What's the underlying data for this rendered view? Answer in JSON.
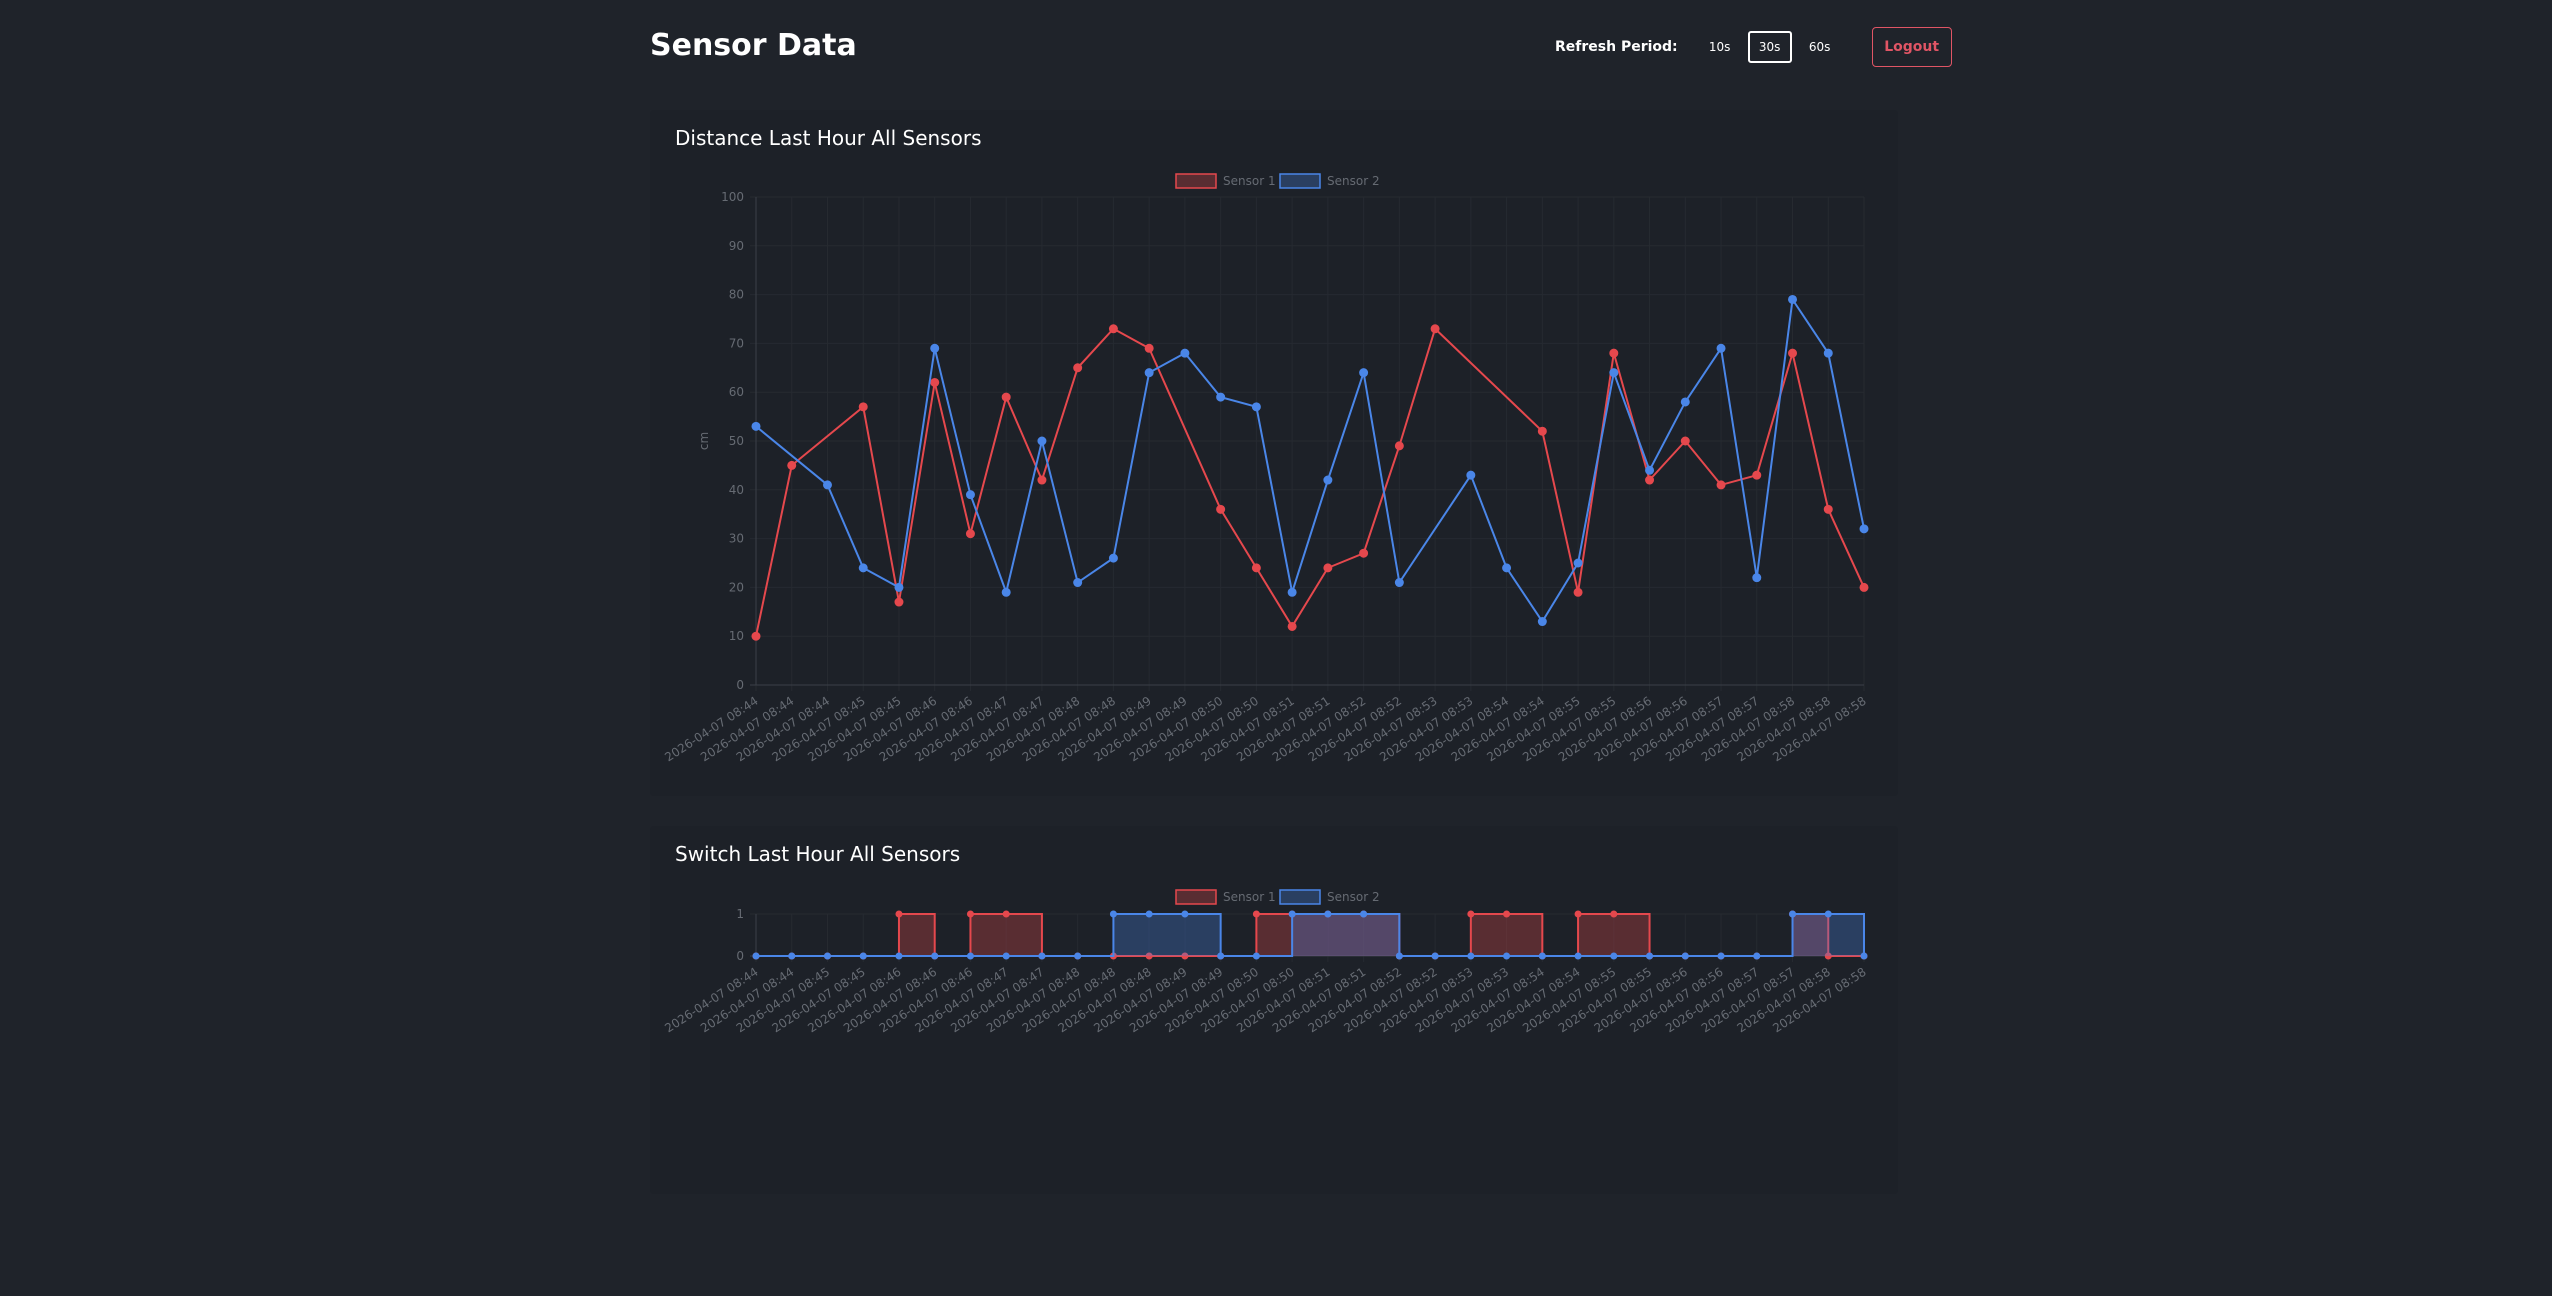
{
  "header": {
    "title": "Sensor Data",
    "refresh_label": "Refresh Period:",
    "periods": [
      "10s",
      "30s",
      "60s"
    ],
    "active_period": "30s",
    "logout_label": "Logout"
  },
  "colors": {
    "sensor1": "#e5484d",
    "sensor2": "#4a86e8",
    "logout": "#e05565",
    "background": "#1f232a"
  },
  "chart_data": [
    {
      "type": "line",
      "title": "Distance Last Hour All Sensors",
      "ylabel": "cm",
      "ylim": [
        0,
        100
      ],
      "yticks": [
        0,
        10,
        20,
        30,
        40,
        50,
        60,
        70,
        80,
        90,
        100
      ],
      "legend": "top-center",
      "grid": true,
      "x": [
        "2026-04-07 08:44",
        "2026-04-07 08:44",
        "2026-04-07 08:44",
        "2026-04-07 08:45",
        "2026-04-07 08:45",
        "2026-04-07 08:46",
        "2026-04-07 08:46",
        "2026-04-07 08:47",
        "2026-04-07 08:47",
        "2026-04-07 08:48",
        "2026-04-07 08:48",
        "2026-04-07 08:49",
        "2026-04-07 08:49",
        "2026-04-07 08:50",
        "2026-04-07 08:50",
        "2026-04-07 08:51",
        "2026-04-07 08:51",
        "2026-04-07 08:52",
        "2026-04-07 08:52",
        "2026-04-07 08:53",
        "2026-04-07 08:53",
        "2026-04-07 08:54",
        "2026-04-07 08:54",
        "2026-04-07 08:55",
        "2026-04-07 08:55",
        "2026-04-07 08:56",
        "2026-04-07 08:56",
        "2026-04-07 08:57",
        "2026-04-07 08:57",
        "2026-04-07 08:58",
        "2026-04-07 08:58",
        "2026-04-07 08:58"
      ],
      "series": [
        {
          "name": "Sensor 1",
          "values": [
            10,
            45,
            null,
            57,
            17,
            62,
            31,
            59,
            42,
            65,
            73,
            69,
            null,
            36,
            24,
            12,
            24,
            27,
            49,
            73,
            null,
            null,
            52,
            19,
            68,
            42,
            50,
            41,
            43,
            68,
            36,
            20
          ]
        },
        {
          "name": "Sensor 2",
          "values": [
            53,
            null,
            41,
            24,
            20,
            69,
            39,
            19,
            50,
            21,
            26,
            64,
            68,
            59,
            57,
            19,
            42,
            64,
            21,
            null,
            43,
            24,
            13,
            25,
            64,
            44,
            58,
            69,
            22,
            79,
            68,
            32
          ]
        }
      ]
    },
    {
      "type": "line",
      "title": "Switch Last Hour All Sensors",
      "ylim": [
        0,
        1
      ],
      "yticks": [
        0,
        1
      ],
      "legend": "top-center",
      "grid": true,
      "x": [
        "2026-04-07 08:44",
        "2026-04-07 08:44",
        "2026-04-07 08:45",
        "2026-04-07 08:45",
        "2026-04-07 08:46",
        "2026-04-07 08:46",
        "2026-04-07 08:46",
        "2026-04-07 08:47",
        "2026-04-07 08:47",
        "2026-04-07 08:48",
        "2026-04-07 08:48",
        "2026-04-07 08:48",
        "2026-04-07 08:49",
        "2026-04-07 08:49",
        "2026-04-07 08:50",
        "2026-04-07 08:50",
        "2026-04-07 08:51",
        "2026-04-07 08:51",
        "2026-04-07 08:52",
        "2026-04-07 08:52",
        "2026-04-07 08:53",
        "2026-04-07 08:53",
        "2026-04-07 08:54",
        "2026-04-07 08:54",
        "2026-04-07 08:55",
        "2026-04-07 08:55",
        "2026-04-07 08:56",
        "2026-04-07 08:56",
        "2026-04-07 08:57",
        "2026-04-07 08:57",
        "2026-04-07 08:58",
        "2026-04-07 08:58"
      ],
      "series": [
        {
          "name": "Sensor 1",
          "values": [
            0,
            0,
            0,
            0,
            1,
            0,
            1,
            1,
            0,
            0,
            0,
            0,
            0,
            0,
            1,
            1,
            1,
            1,
            0,
            0,
            1,
            1,
            0,
            1,
            1,
            0,
            0,
            0,
            0,
            1,
            0,
            0
          ],
          "step": true
        },
        {
          "name": "Sensor 2",
          "values": [
            0,
            0,
            0,
            0,
            0,
            0,
            0,
            0,
            0,
            0,
            1,
            1,
            1,
            0,
            0,
            1,
            1,
            1,
            0,
            0,
            0,
            0,
            0,
            0,
            0,
            0,
            0,
            0,
            0,
            1,
            1,
            0
          ],
          "step": true
        }
      ]
    }
  ]
}
